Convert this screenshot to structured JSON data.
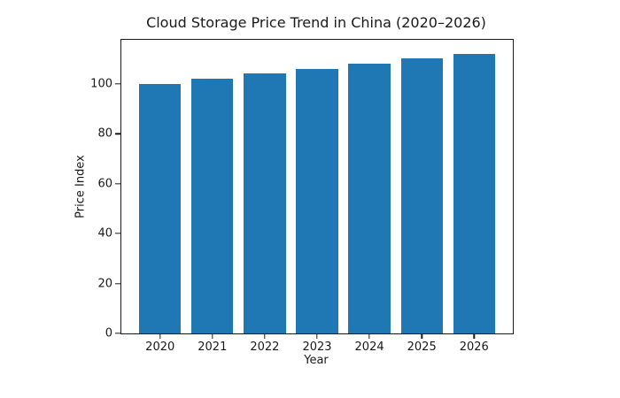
{
  "figure": {
    "background": "#ffffff",
    "text_color": "#1a1a1a"
  },
  "chart_data": {
    "type": "bar",
    "title": "Cloud Storage Price Trend in China (2020–2026)",
    "xlabel": "Year",
    "ylabel": "Price Index",
    "categories": [
      "2020",
      "2021",
      "2022",
      "2023",
      "2024",
      "2025",
      "2026"
    ],
    "values": [
      100,
      102,
      104,
      106,
      108,
      110,
      112
    ],
    "ylim": [
      0,
      117.6
    ],
    "yticks": [
      0,
      20,
      40,
      60,
      80,
      100
    ],
    "bar_color": "#1f77b4",
    "bar_width_fraction": 0.8,
    "grid": false,
    "legend_position": "none"
  }
}
